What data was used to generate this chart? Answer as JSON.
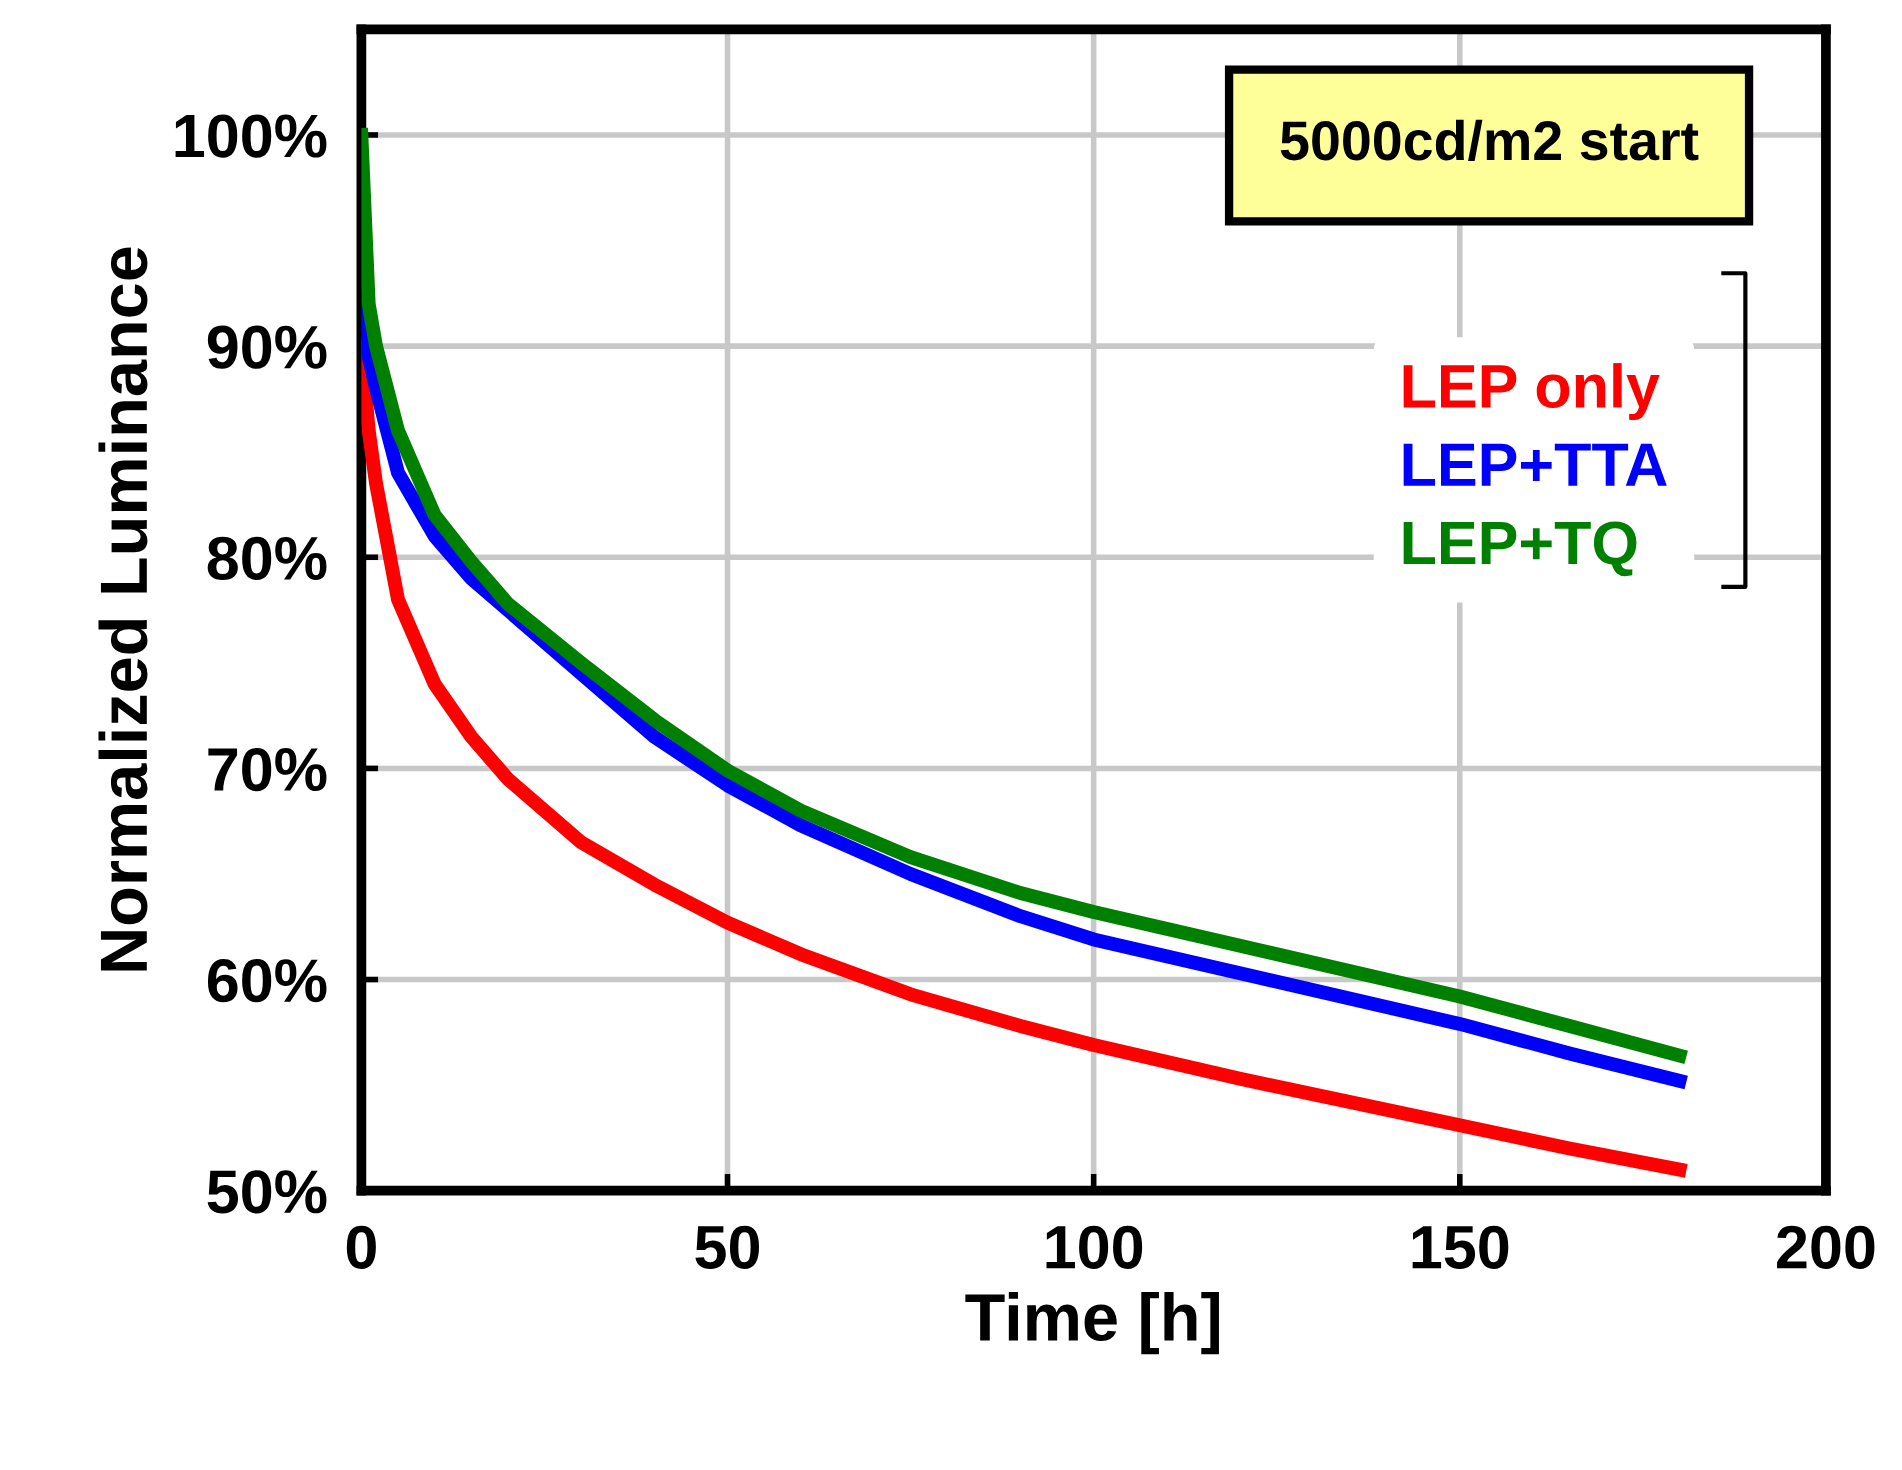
{
  "chart_data": {
    "type": "line",
    "xlabel": "Time [h]",
    "ylabel": "Normalized Luminance",
    "annotations": [
      "5000cd/m2 start"
    ],
    "xlim": [
      0,
      200
    ],
    "xticks": [
      0,
      50,
      100,
      150,
      200
    ],
    "ylim": [
      50,
      105
    ],
    "yticks": [
      {
        "value": 50,
        "label": "50%"
      },
      {
        "value": 60,
        "label": "60%"
      },
      {
        "value": 70,
        "label": "70%"
      },
      {
        "value": 80,
        "label": "80%"
      },
      {
        "value": 90,
        "label": "90%"
      },
      {
        "value": 100,
        "label": "100%"
      }
    ],
    "grid": true,
    "legend": "top right",
    "marker": "none",
    "line_style": "solid",
    "x": [
      0,
      1,
      2,
      5,
      10,
      15,
      20,
      30,
      40,
      50,
      60,
      75,
      90,
      100,
      120,
      150,
      165,
      180
    ],
    "series": [
      {
        "name": "LEP only",
        "color": "#ff0000",
        "values": [
          90,
          86,
          83.5,
          78,
          74,
          71.5,
          69.5,
          66.5,
          64.5,
          62.7,
          61.2,
          59.3,
          57.8,
          56.9,
          55.3,
          53.1,
          52.0,
          51.0
        ]
      },
      {
        "name": "LEP+TTA",
        "color": "#0000ff",
        "values": [
          92,
          89.5,
          88,
          84,
          81,
          79,
          77.5,
          74.5,
          71.5,
          69.2,
          67.3,
          65,
          63,
          61.9,
          60.3,
          57.9,
          56.5,
          55.2
        ]
      },
      {
        "name": "LEP+TQ",
        "color": "#008000",
        "values": [
          100,
          92,
          90,
          86,
          82,
          79.8,
          77.8,
          75,
          72.3,
          69.9,
          68,
          65.8,
          64.1,
          63.2,
          61.6,
          59.2,
          57.8,
          56.4
        ]
      }
    ]
  }
}
